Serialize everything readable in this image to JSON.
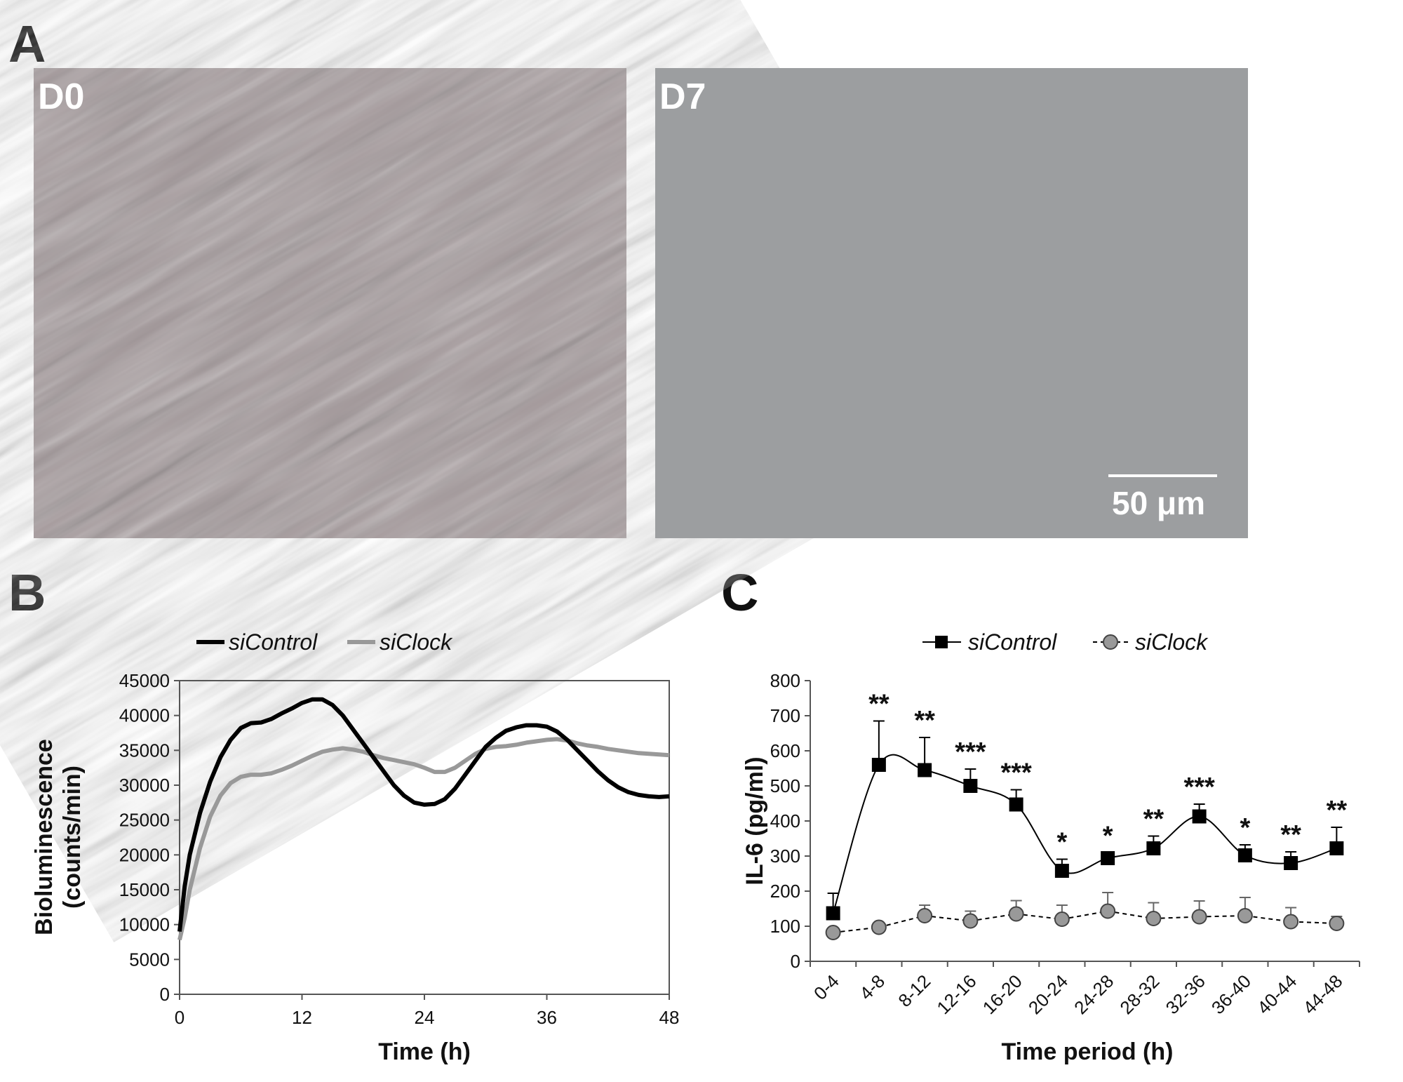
{
  "figure": {
    "panel_labels": [
      "A",
      "B",
      "C"
    ],
    "micrographs": [
      {
        "label": "D0",
        "tint": "#a59a9c"
      },
      {
        "label": "D7",
        "tint": "#9c9ea0"
      }
    ],
    "scale_bar": {
      "label": "50 μm",
      "length_um": 50
    }
  },
  "chart_data": [
    {
      "type": "line",
      "panel": "B",
      "xlabel": "Time (h)",
      "ylabel_lines": [
        "Bioluminescence",
        "(counts/min)"
      ],
      "xlim": [
        0,
        48
      ],
      "ylim": [
        0,
        45000
      ],
      "xticks": [
        0,
        12,
        24,
        36,
        48
      ],
      "yticks": [
        0,
        5000,
        10000,
        15000,
        20000,
        25000,
        30000,
        35000,
        40000,
        45000
      ],
      "grid": false,
      "legend_position": "top-center",
      "series": [
        {
          "name": "siControl",
          "color": "#000000",
          "points": [
            [
              0,
              9000
            ],
            [
              0.5,
              15500
            ],
            [
              1,
              20000
            ],
            [
              2,
              26000
            ],
            [
              3,
              30500
            ],
            [
              4,
              34000
            ],
            [
              5,
              36500
            ],
            [
              6,
              38200
            ],
            [
              7,
              38900
            ],
            [
              8,
              39000
            ],
            [
              9,
              39500
            ],
            [
              10,
              40300
            ],
            [
              11,
              41000
            ],
            [
              12,
              41800
            ],
            [
              13,
              42300
            ],
            [
              14,
              42300
            ],
            [
              15,
              41500
            ],
            [
              16,
              40000
            ],
            [
              17,
              38000
            ],
            [
              18,
              36000
            ],
            [
              19,
              34000
            ],
            [
              20,
              32000
            ],
            [
              21,
              30000
            ],
            [
              22,
              28500
            ],
            [
              23,
              27500
            ],
            [
              24,
              27200
            ],
            [
              25,
              27300
            ],
            [
              26,
              28000
            ],
            [
              27,
              29500
            ],
            [
              28,
              31500
            ],
            [
              29,
              33500
            ],
            [
              30,
              35500
            ],
            [
              31,
              36800
            ],
            [
              32,
              37800
            ],
            [
              33,
              38300
            ],
            [
              34,
              38600
            ],
            [
              35,
              38600
            ],
            [
              36,
              38400
            ],
            [
              37,
              37700
            ],
            [
              38,
              36500
            ],
            [
              39,
              35000
            ],
            [
              40,
              33500
            ],
            [
              41,
              32000
            ],
            [
              42,
              30700
            ],
            [
              43,
              29700
            ],
            [
              44,
              29000
            ],
            [
              45,
              28600
            ],
            [
              46,
              28400
            ],
            [
              47,
              28300
            ],
            [
              48,
              28400
            ]
          ]
        },
        {
          "name": "siClock",
          "color": "#999999",
          "points": [
            [
              0,
              7800
            ],
            [
              0.5,
              11000
            ],
            [
              1,
              15000
            ],
            [
              2,
              21000
            ],
            [
              3,
              25500
            ],
            [
              4,
              28500
            ],
            [
              5,
              30300
            ],
            [
              6,
              31200
            ],
            [
              7,
              31500
            ],
            [
              8,
              31500
            ],
            [
              9,
              31700
            ],
            [
              10,
              32200
            ],
            [
              11,
              32800
            ],
            [
              12,
              33500
            ],
            [
              13,
              34200
            ],
            [
              14,
              34800
            ],
            [
              15,
              35100
            ],
            [
              16,
              35300
            ],
            [
              17,
              35100
            ],
            [
              18,
              34800
            ],
            [
              19,
              34300
            ],
            [
              20,
              33900
            ],
            [
              21,
              33600
            ],
            [
              22,
              33300
            ],
            [
              23,
              33000
            ],
            [
              24,
              32500
            ],
            [
              25,
              31900
            ],
            [
              26,
              31900
            ],
            [
              27,
              32500
            ],
            [
              28,
              33500
            ],
            [
              29,
              34500
            ],
            [
              30,
              35200
            ],
            [
              31,
              35500
            ],
            [
              32,
              35600
            ],
            [
              33,
              35800
            ],
            [
              34,
              36100
            ],
            [
              35,
              36300
            ],
            [
              36,
              36500
            ],
            [
              37,
              36600
            ],
            [
              38,
              36400
            ],
            [
              39,
              36000
            ],
            [
              40,
              35700
            ],
            [
              41,
              35500
            ],
            [
              42,
              35200
            ],
            [
              43,
              35000
            ],
            [
              44,
              34800
            ],
            [
              45,
              34600
            ],
            [
              46,
              34500
            ],
            [
              47,
              34400
            ],
            [
              48,
              34300
            ]
          ]
        }
      ]
    },
    {
      "type": "line",
      "panel": "C",
      "xlabel": "Time period (h)",
      "ylabel": "IL-6 (pg/ml)",
      "ylim": [
        0,
        800
      ],
      "yticks": [
        0,
        100,
        200,
        300,
        400,
        500,
        600,
        700,
        800
      ],
      "grid": false,
      "legend_position": "top-center",
      "categories": [
        "0-4",
        "4-8",
        "8-12",
        "12-16",
        "16-20",
        "20-24",
        "24-28",
        "28-32",
        "32-36",
        "36-40",
        "40-44",
        "44-48"
      ],
      "series": [
        {
          "name": "siControl",
          "marker": "square",
          "line": "solid",
          "color": "#000000",
          "values": [
            137,
            560,
            545,
            500,
            447,
            258,
            294,
            322,
            413,
            302,
            280,
            322
          ],
          "errors": [
            57,
            125,
            93,
            48,
            42,
            33,
            15,
            35,
            35,
            30,
            32,
            60
          ]
        },
        {
          "name": "siClock",
          "marker": "circle",
          "line": "dashed",
          "color": "#999999",
          "values": [
            82,
            97,
            130,
            115,
            135,
            120,
            143,
            122,
            127,
            130,
            113,
            108
          ],
          "errors": [
            0,
            0,
            30,
            28,
            38,
            40,
            53,
            45,
            45,
            52,
            40,
            20
          ]
        }
      ],
      "significance": [
        "",
        "**",
        "**",
        "***",
        "***",
        "*",
        "*",
        "**",
        "***",
        "*",
        "**",
        "**"
      ]
    }
  ]
}
